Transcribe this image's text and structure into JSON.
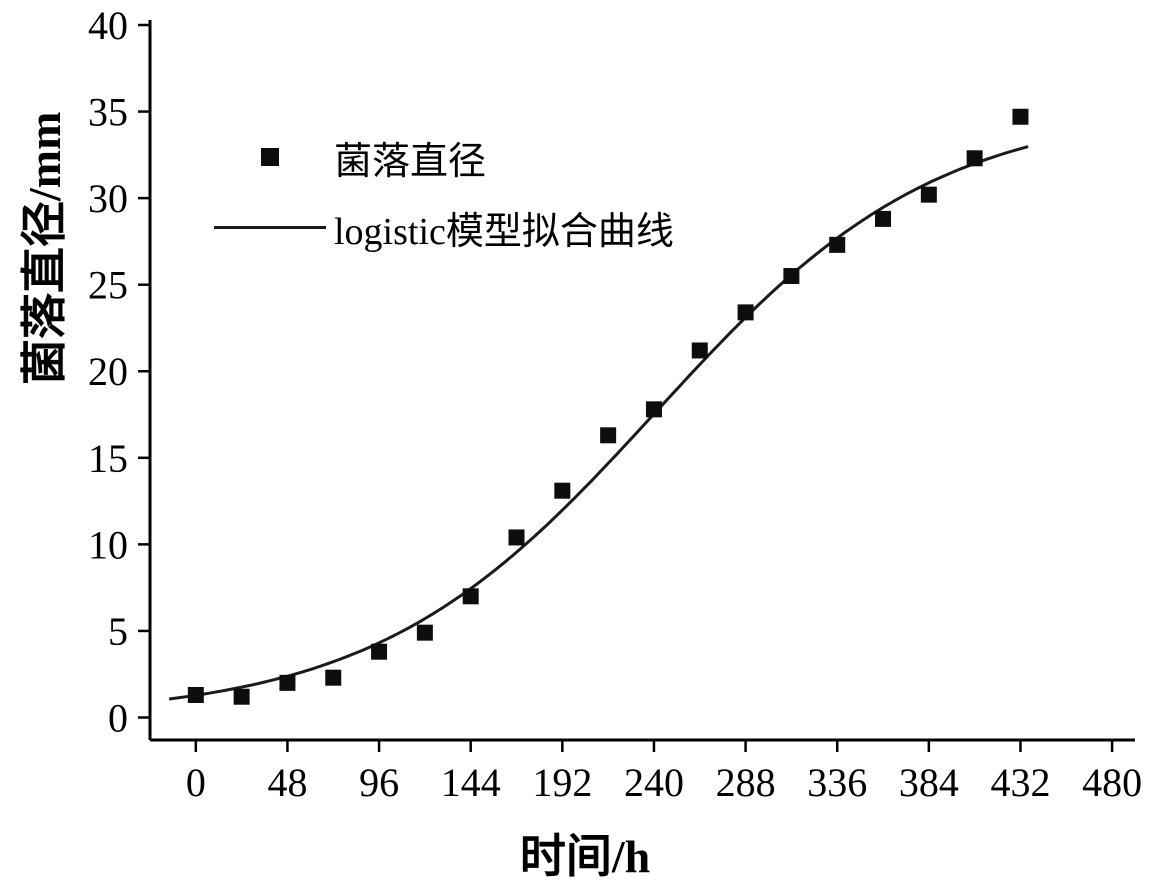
{
  "chart_data": {
    "type": "scatter",
    "title": "",
    "xlabel": "时间/h",
    "ylabel": "菌落直径/mm",
    "xlim": [
      -24,
      492
    ],
    "ylim": [
      -1.3,
      40
    ],
    "x_ticks": [
      0,
      48,
      96,
      144,
      192,
      240,
      288,
      336,
      384,
      432,
      480
    ],
    "y_ticks": [
      0,
      5,
      10,
      15,
      20,
      25,
      30,
      35,
      40
    ],
    "grid": false,
    "legend_position": "upper-left",
    "series": [
      {
        "name": "菌落直径",
        "type": "scatter",
        "marker": "square",
        "color": "#0d0d0d",
        "points": [
          [
            0,
            1.3
          ],
          [
            24,
            1.2
          ],
          [
            48,
            2.0
          ],
          [
            72,
            2.3
          ],
          [
            96,
            3.8
          ],
          [
            120,
            4.9
          ],
          [
            144,
            7.0
          ],
          [
            168,
            10.4
          ],
          [
            192,
            13.1
          ],
          [
            216,
            16.3
          ],
          [
            240,
            17.8
          ],
          [
            264,
            21.2
          ],
          [
            288,
            23.4
          ],
          [
            312,
            25.5
          ],
          [
            336,
            27.3
          ],
          [
            360,
            28.8
          ],
          [
            384,
            30.2
          ],
          [
            408,
            32.3
          ],
          [
            432,
            34.7
          ]
        ]
      },
      {
        "name": "logistic模型拟合曲线",
        "type": "line",
        "color": "#1a1a1a",
        "logistic": {
          "K": 35.3,
          "r": 0.0136,
          "t0": 241
        },
        "t_range": [
          -14,
          437
        ]
      }
    ]
  }
}
